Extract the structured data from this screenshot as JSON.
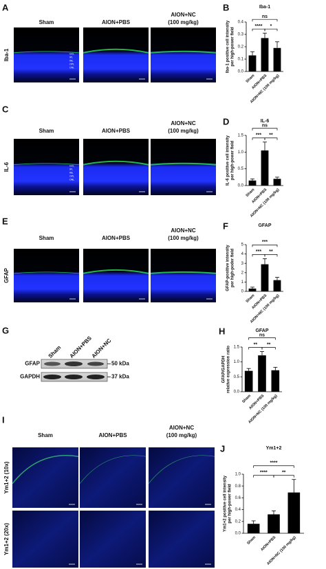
{
  "image_panels": [
    {
      "letter": "A",
      "headers": [
        "Sham",
        "AION+PBS",
        "AION+NC",
        "(100 mg/kg)"
      ],
      "rows": [
        "Iba-1"
      ],
      "layers": [
        "GCL",
        "IPL",
        "INL",
        "OPL",
        "ONL"
      ]
    },
    {
      "letter": "C",
      "headers": [
        "Sham",
        "AION+PBS",
        "AION+NC",
        "(100 mg/kg)"
      ],
      "rows": [
        "IL-6"
      ],
      "layers": [
        "GCL",
        "IPL",
        "INL",
        "OPL",
        "ONL"
      ]
    },
    {
      "letter": "E",
      "headers": [
        "Sham",
        "AION+PBS",
        "AION+NC",
        "(100 mg/kg)"
      ],
      "rows": [
        "GFAP"
      ]
    },
    {
      "letter": "I",
      "headers": [
        "Sham",
        "AION+PBS",
        "AION+NC",
        "(100 mg/kg)"
      ],
      "rows": [
        "Ym1+2 (10x)",
        "Ym1+2 (20x)"
      ]
    }
  ],
  "blot": {
    "letter": "G",
    "lanes": [
      "Sham",
      "AION+PBS",
      "AION+NC"
    ],
    "bands": [
      {
        "name": "GFAP",
        "size": "50 kDa"
      },
      {
        "name": "GAPDH",
        "size": "37 kDa"
      }
    ]
  },
  "chart_data": [
    {
      "type": "bar",
      "panel": "B",
      "title": "Iba-1",
      "ylabel": [
        "Iba-1 positive cell intensity",
        "per high-power field"
      ],
      "categories": [
        "Sham",
        "AION+PBS",
        "AION+NC (100 mg/kg)"
      ],
      "values": [
        0.13,
        0.27,
        0.19
      ],
      "errors": [
        0.03,
        0.04,
        0.05
      ],
      "color": "#000000",
      "ylim": [
        0,
        0.4
      ],
      "yticks": [
        {
          "value": 0,
          "label": "0.0"
        },
        0.1,
        0.2,
        0.3,
        0.4
      ],
      "annotations": [
        "ns",
        "****",
        "*"
      ]
    },
    {
      "type": "bar",
      "panel": "D",
      "title": "IL-6",
      "ylabel": [
        "IL-6 positive cell intensity",
        "per high-power field"
      ],
      "categories": [
        "Sham",
        "AION+PBS",
        "AION+NC (100 mg/kg)"
      ],
      "values": [
        0.15,
        1.05,
        0.2
      ],
      "errors": [
        0.05,
        0.25,
        0.05
      ],
      "color": "#000000",
      "ylim": [
        0,
        1.5
      ],
      "yticks": [
        {
          "value": 0,
          "label": "0.0"
        },
        0.5,
        {
          "value": 1,
          "label": "1.0"
        },
        1.5
      ],
      "annotations": [
        "ns",
        "***",
        "**"
      ]
    },
    {
      "type": "bar",
      "panel": "F",
      "title": "GFAP",
      "ylabel": [
        "GFAP-positive intensity",
        "per high-poder field"
      ],
      "categories": [
        "Sham",
        "AION+PBS",
        "AION+NC (100 mg/kg)"
      ],
      "values": [
        0.3,
        2.9,
        1.2
      ],
      "errors": [
        0.15,
        0.6,
        0.3
      ],
      "color": "#000000",
      "ylim": [
        0,
        5
      ],
      "yticks": [
        0,
        1,
        2,
        3,
        4,
        5
      ],
      "annotations": [
        "***",
        "***",
        "**"
      ]
    },
    {
      "type": "bar",
      "panel": "H",
      "title": "GFAP",
      "ylabel": [
        "GFAP/GAPDH",
        "relative expression ratio"
      ],
      "categories": [
        "Sham",
        "AION+PBS",
        "AION+NC (100 mg/kg)"
      ],
      "values": [
        0.7,
        1.22,
        0.72
      ],
      "errors": [
        0.08,
        0.13,
        0.1
      ],
      "color": "#000000",
      "ylim": [
        0,
        1.5
      ],
      "yticks": [
        {
          "value": 0,
          "label": "0.0"
        },
        0.5,
        {
          "value": 1,
          "label": "1.0"
        },
        1.5
      ],
      "annotations": [
        "ns",
        "**",
        "**"
      ]
    },
    {
      "type": "bar",
      "panel": "J",
      "title": "Ym1+2",
      "ylabel": [
        "Ym1+2 positive cell intensity",
        "per high-power field"
      ],
      "categories": [
        "Sham",
        "AION+PBS",
        "AION+NC (100 mg/kg)"
      ],
      "values": [
        0.16,
        0.32,
        0.69
      ],
      "errors": [
        0.05,
        0.06,
        0.22
      ],
      "color": "#000000",
      "ylim": [
        0,
        1
      ],
      "yticks": [
        {
          "value": 0,
          "label": "0.0"
        },
        0.2,
        0.4,
        0.6,
        0.8,
        {
          "value": 1,
          "label": "1.0"
        }
      ],
      "annotations": [
        "****",
        "****",
        "**"
      ]
    }
  ]
}
